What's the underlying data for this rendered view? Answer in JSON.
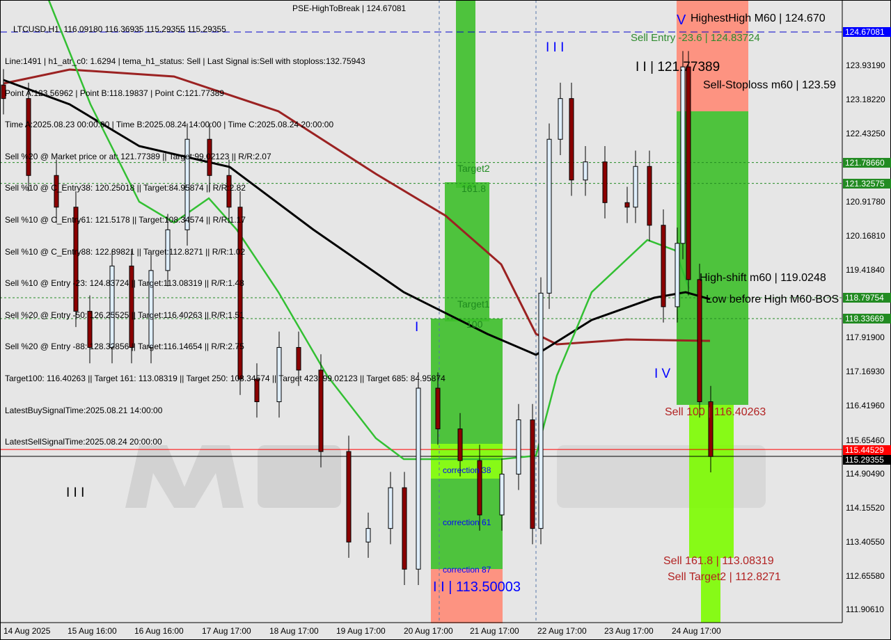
{
  "header": {
    "symbol_line": "LTCUSD,H1  116.09180 116.36935 115.29355 115.29355",
    "lines": [
      "Line:1491 | h1_atr_c0: 1.6294 | tema_h1_status: Sell | Last Signal is:Sell with stoploss:132.75943",
      "Point A:123.56962 | Point B:118.19837 | Point C:121.77389",
      "Time A:2025.08.23 00:00:00 | Time B:2025.08.24 14:00:00 | Time C:2025.08.24 20:00:00",
      "Sell %20 @ Market price or at: 121.77389 || Target:99.02123 || R/R:2.07",
      "Sell %10 @ C_Entry38: 120.25018 || Target:84.95874 || R/R:2.82",
      "Sell %10 @ C_Entry61: 121.5178 || Target:108.34574 || R/R:1.17",
      "Sell %10 @ C_Entry88: 122.89821 || Target:112.8271 || R/R:1.02",
      "Sell %10 @ Entry -23: 124.83724 || Target:113.08319 || R/R:1.48",
      "Sell %20 @ Entry -50: 126.25525 || Target:116.40263 || R/R:1.51",
      "Sell %20 @ Entry -88: 128.32856 || Target:116.14654 || R/R:2.75",
      "Target100: 116.40263 || Target 161: 113.08319 || Target 250: 108.34574 || Target 423: 99.02123 || Target 685: 84.95874",
      "LatestBuySignalTime:2025.08.21 14:00:00",
      "LatestSellSignalTime:2025.08.24 20:00:00"
    ],
    "overlap_label": "PSE-HighToBreak | 124.67081"
  },
  "watermark": "MARKETZITRADE",
  "annotations": {
    "sell_entry": "Sell Entry -23.6 | 124.83724",
    "highest_high": "HighestHigh   M60 | 124.670",
    "point_c": "I I | 121.77389",
    "sell_stoploss": "Sell-Stoploss m60 | 123.59",
    "high_shift": "High-shift m60 | 119.0248",
    "low_before_high": "Low before High   M60-BOS",
    "wave_iv": "I V",
    "wave_v": "V",
    "wave_iii_top": "I I I",
    "wave_iii_left": "I I I",
    "wave_i": "I",
    "sell_100": "Sell 100 | 116.40263",
    "sell_161": "Sell 161.8 | 113.08319",
    "sell_target2": "Sell Target2 | 112.8271",
    "point_b_low": "I I | 113.50003",
    "correction_38": "correction 38",
    "correction_61": "correction 61",
    "correction_87": "correction 87",
    "target2": "Target2",
    "fib_161": "161.8",
    "target1": "Target1",
    "fib_100": "100"
  },
  "price_axis": {
    "ticks": [
      "123.93190",
      "123.18220",
      "122.43250",
      "120.91780",
      "120.16810",
      "119.41840",
      "117.91900",
      "117.16930",
      "116.41960",
      "115.65460",
      "114.90490",
      "114.15520",
      "113.40550",
      "112.65580",
      "111.90610"
    ],
    "markers": [
      {
        "value": "124.67081",
        "color": "#0000ff"
      },
      {
        "value": "121.78660",
        "color": "#228b22"
      },
      {
        "value": "121.32575",
        "color": "#228b22"
      },
      {
        "value": "118.79754",
        "color": "#228b22"
      },
      {
        "value": "118.33669",
        "color": "#228b22"
      },
      {
        "value": "115.44529",
        "color": "#ff0000"
      },
      {
        "value": "115.29355",
        "color": "#000000"
      }
    ]
  },
  "time_axis": [
    "14 Aug 2025",
    "15 Aug 16:00",
    "16 Aug 16:00",
    "17 Aug 17:00",
    "18 Aug 17:00",
    "19 Aug 17:00",
    "20 Aug 17:00",
    "21 Aug 17:00",
    "22 Aug 17:00",
    "23 Aug 17:00",
    "24 Aug 17:00"
  ],
  "chart_data": {
    "type": "candlestick",
    "symbol": "LTCUSD",
    "timeframe": "H1",
    "ylim": [
      111.6,
      125.3
    ],
    "x": [
      "2025-08-14 17:00",
      "2025-08-15 02:00",
      "2025-08-15 12:00",
      "2025-08-15 19:00",
      "2025-08-16 00:00",
      "2025-08-16 08:00",
      "2025-08-16 15:00",
      "2025-08-16 22:00",
      "2025-08-17 04:00",
      "2025-08-17 11:00",
      "2025-08-17 19:00",
      "2025-08-18 02:00",
      "2025-08-18 06:00",
      "2025-08-18 12:00",
      "2025-08-18 20:00",
      "2025-08-19 03:00",
      "2025-08-19 11:00",
      "2025-08-19 21:00",
      "2025-08-20 04:00",
      "2025-08-20 12:00",
      "2025-08-20 17:00",
      "2025-08-20 22:00",
      "2025-08-21 05:00",
      "2025-08-21 13:00",
      "2025-08-21 20:00",
      "2025-08-22 04:00",
      "2025-08-22 10:00",
      "2025-08-22 15:00",
      "2025-08-22 18:00",
      "2025-08-22 21:00",
      "2025-08-23 01:00",
      "2025-08-23 05:00",
      "2025-08-23 10:00",
      "2025-08-23 17:00",
      "2025-08-24 01:00",
      "2025-08-24 04:00",
      "2025-08-24 09:00",
      "2025-08-24 14:00",
      "2025-08-24 19:00",
      "2025-08-24 21:00",
      "2025-08-24 23:00",
      "2025-08-25 03:00",
      "2025-08-25 07:00"
    ],
    "close": [
      123.2,
      121.5,
      120.8,
      118.5,
      117.7,
      119.5,
      117.7,
      119.4,
      120.3,
      122.3,
      121.5,
      120.8,
      117.0,
      116.5,
      117.7,
      117.2,
      115.4,
      113.4,
      113.7,
      114.6,
      112.8,
      116.8,
      115.9,
      115.2,
      114.0,
      114.9,
      116.1,
      113.7,
      118.9,
      122.3,
      123.2,
      121.4,
      121.8,
      120.9,
      120.8,
      121.7,
      120.4,
      118.6,
      120.0,
      123.9,
      119.2,
      116.5,
      115.29
    ],
    "levels": [
      {
        "value": 124.67081,
        "color": "#0000cc",
        "style": "dashed"
      },
      {
        "value": 121.7866,
        "color": "#228b22",
        "style": "dotted"
      },
      {
        "value": 121.32575,
        "color": "#228b22",
        "style": "dotted"
      },
      {
        "value": 118.79754,
        "color": "#228b22",
        "style": "dotted"
      },
      {
        "value": 118.33669,
        "color": "#228b22",
        "style": "dotted"
      },
      {
        "value": 115.44529,
        "color": "#ff0000",
        "style": "solid"
      },
      {
        "value": 115.29355,
        "color": "#000000",
        "style": "solid"
      }
    ]
  },
  "colors": {
    "bull_zone": "#3dbf2a",
    "lime_zone": "#7cfc00",
    "sell_zone": "#ff8a75",
    "ma_green": "#33c033",
    "ma_black": "#000000",
    "ma_brown": "#9b2222"
  }
}
